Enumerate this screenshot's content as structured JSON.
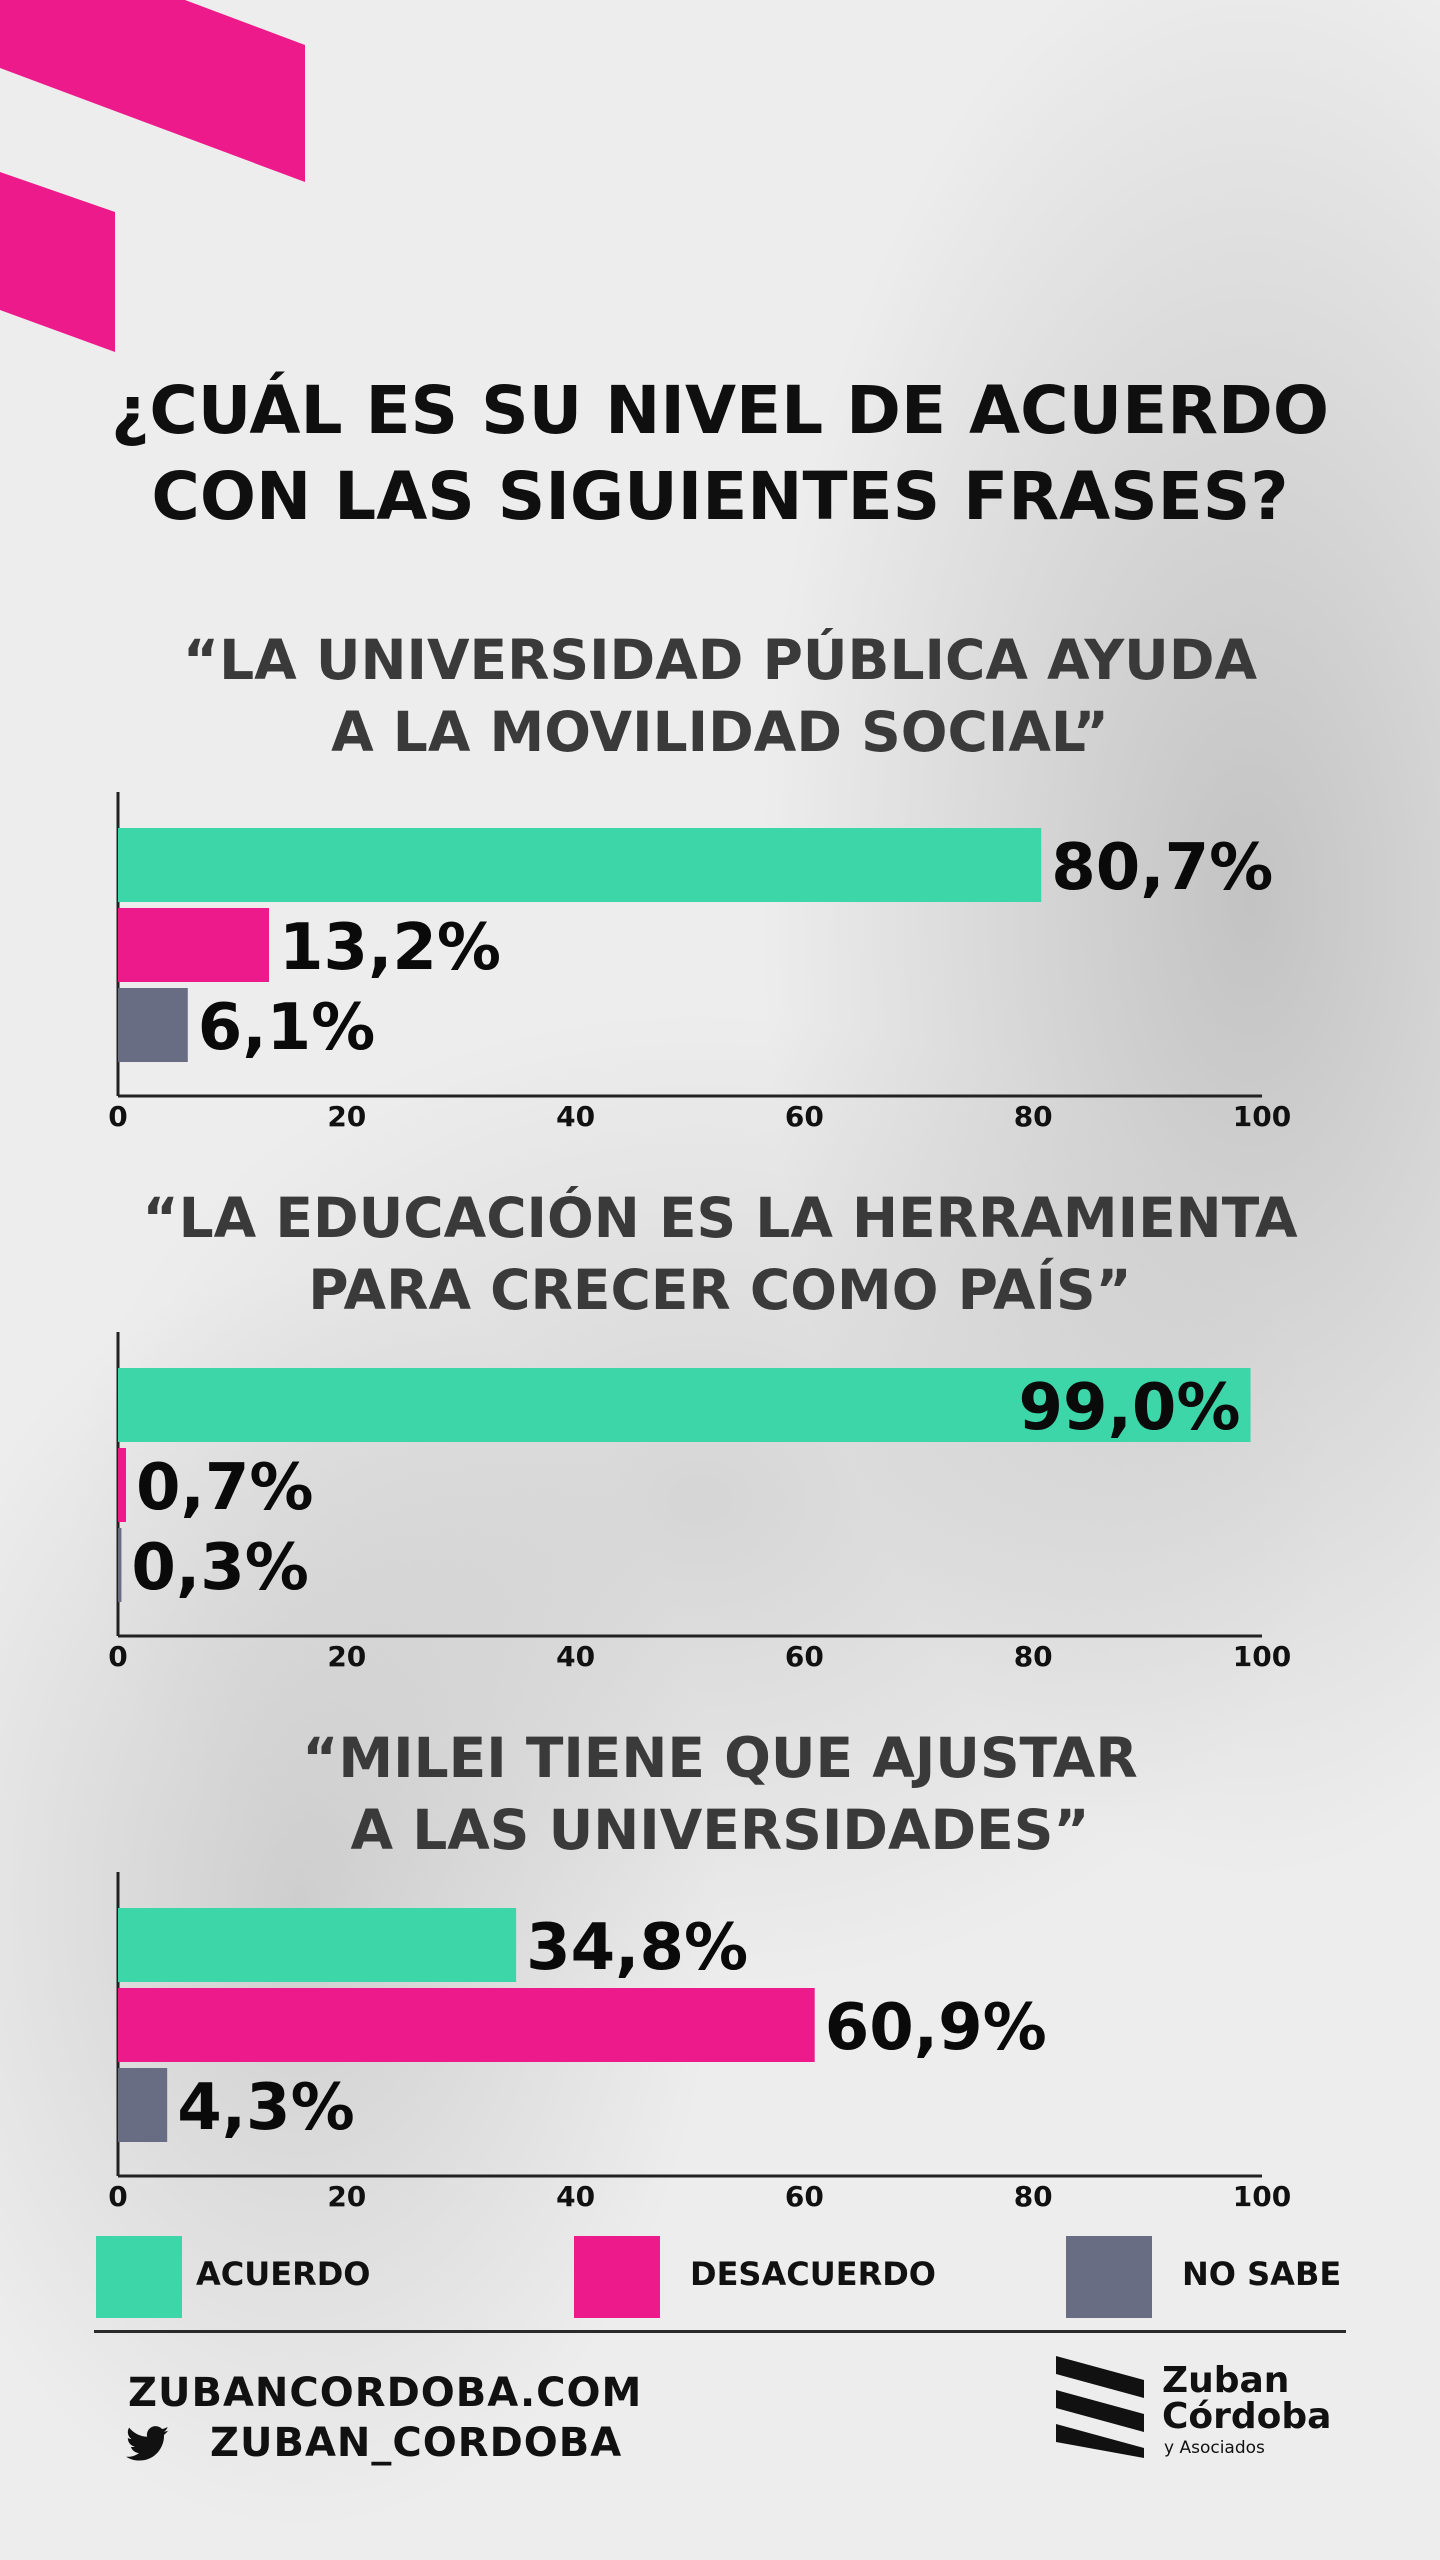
{
  "title_line1": "¿CUÁL ES SU NIVEL DE ACUERDO",
  "title_line2": "CON LAS SIGUIENTES FRASES?",
  "colors": {
    "acuerdo": "#3dd6a9",
    "desacuerdo": "#ec1a8a",
    "no_sabe": "#686d83",
    "accent": "#ec1a8a"
  },
  "legend": [
    {
      "label": "ACUERDO",
      "color": "#3dd6a9"
    },
    {
      "label": "DESACUERDO",
      "color": "#ec1a8a"
    },
    {
      "label": "NO SABE",
      "color": "#686d83"
    }
  ],
  "chart_data": [
    {
      "type": "bar",
      "orientation": "horizontal",
      "title_line1": "“LA UNIVERSIDAD PÚBLICA AYUDA",
      "title_line2": "A LA MOVILIDAD SOCIAL”",
      "categories": [
        "ACUERDO",
        "DESACUERDO",
        "NO SABE"
      ],
      "values": [
        80.7,
        13.2,
        6.1
      ],
      "value_labels": [
        "80,7%",
        "13,2%",
        "6,1%"
      ],
      "xlim": [
        0,
        100
      ],
      "xticks": [
        "0",
        "20",
        "40",
        "60",
        "80",
        "100"
      ],
      "label_inside": [
        false,
        false,
        false
      ]
    },
    {
      "type": "bar",
      "orientation": "horizontal",
      "title_line1": "“LA EDUCACIÓN ES LA HERRAMIENTA",
      "title_line2": "PARA CRECER COMO PAÍS”",
      "categories": [
        "ACUERDO",
        "DESACUERDO",
        "NO SABE"
      ],
      "values": [
        99.0,
        0.7,
        0.3
      ],
      "value_labels": [
        "99,0%",
        "0,7%",
        "0,3%"
      ],
      "xlim": [
        0,
        100
      ],
      "xticks": [
        "0",
        "20",
        "40",
        "60",
        "80",
        "100"
      ],
      "label_inside": [
        true,
        false,
        false
      ]
    },
    {
      "type": "bar",
      "orientation": "horizontal",
      "title_line1": "“MILEI TIENE QUE AJUSTAR",
      "title_line2": "A LAS UNIVERSIDADES”",
      "categories": [
        "ACUERDO",
        "DESACUERDO",
        "NO SABE"
      ],
      "values": [
        34.8,
        60.9,
        4.3
      ],
      "value_labels": [
        "34,8%",
        "60,9%",
        "4,3%"
      ],
      "xlim": [
        0,
        100
      ],
      "xticks": [
        "0",
        "20",
        "40",
        "60",
        "80",
        "100"
      ],
      "label_inside": [
        false,
        false,
        false
      ]
    }
  ],
  "footer": {
    "website": "ZUBANCORDOBA.COM",
    "twitter_icon": "twitter-bird-icon",
    "twitter_handle": "ZUBAN_CORDOBA"
  },
  "logo": {
    "line1": "Zuban",
    "line2": "Córdoba",
    "line3": "y Asociados"
  }
}
